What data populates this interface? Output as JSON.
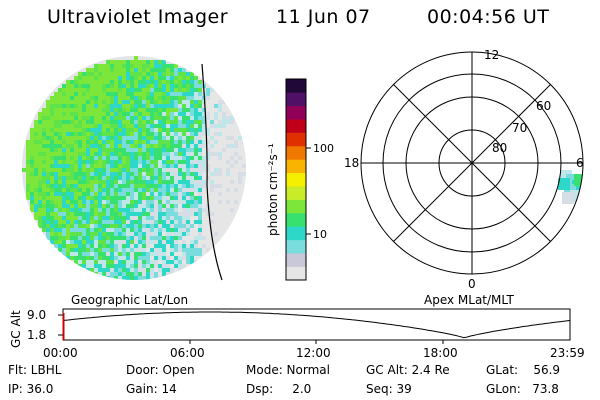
{
  "header": {
    "title": "Ultraviolet Imager",
    "date": "11 Jun 07",
    "time": "00:04:56 UT"
  },
  "colorbar": {
    "unit_label": "photon cm⁻²s⁻¹",
    "tick_labels": [
      "100",
      "10"
    ],
    "colors": [
      "#e6e6e6",
      "#c8c8d8",
      "#7adcdc",
      "#2ed8c8",
      "#38e070",
      "#7ce63a",
      "#c8ec28",
      "#f4f000",
      "#f8b400",
      "#f07800",
      "#e03000",
      "#c00018",
      "#900058",
      "#501068",
      "#200838"
    ]
  },
  "panels": {
    "left_label": "Geographic Lat/Lon",
    "right_label": "Apex MLat/MLT"
  },
  "polar_plot": {
    "mlt_labels": [
      "12",
      "18",
      "6",
      "0"
    ],
    "mlat_labels": [
      "60",
      "70",
      "80"
    ]
  },
  "altitude_plot": {
    "ylabel": "GC Alt",
    "yticks": [
      "9.0",
      "1.8"
    ],
    "xticks": [
      "00:00",
      "06:00",
      "12:00",
      "18:00",
      "23:59"
    ]
  },
  "info": {
    "flt": "Flt: LBHL",
    "ip": "IP: 36.0",
    "door": "Door: Open",
    "gain": "Gain: 14",
    "mode": "Mode: Normal",
    "dsp": "Dsp:     2.0",
    "gcalt": "GC Alt: 2.4 Re",
    "seq": "Seq: 39",
    "glat": "GLat:    56.9",
    "glon": "GLon:   73.8"
  }
}
